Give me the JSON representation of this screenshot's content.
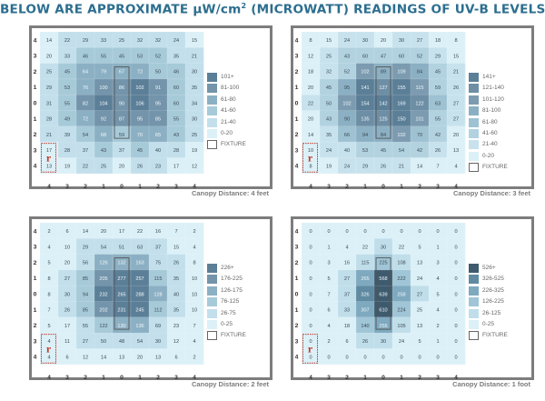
{
  "title_prefix": "BELOW ARE APPROXIMATE µW/cm",
  "title_superscript": "2",
  "title_suffix": " (MICROWATT) READINGS OF UV-B LEVELS",
  "fixture_mark": "r",
  "axis": {
    "x_ticks": [
      "4",
      "3",
      "2",
      "1",
      "0",
      "1",
      "2",
      "3",
      "4"
    ],
    "y_ticks": [
      "4",
      "3",
      "2",
      "1",
      "0",
      "1",
      "2",
      "3",
      "4"
    ]
  },
  "panels": [
    {
      "caption": "Canopy Distance: 4 feet",
      "legend": [
        {
          "label": "101+",
          "color": "#5c7f98"
        },
        {
          "label": "81-100",
          "color": "#7394aa"
        },
        {
          "label": "61-80",
          "color": "#8cb0c3"
        },
        {
          "label": "41-60",
          "color": "#a7cad9"
        },
        {
          "label": "21-40",
          "color": "#c2dfeb"
        },
        {
          "label": "0-20",
          "color": "#dcf0f7"
        },
        {
          "label": "FIXTURE",
          "color": "#ffffff"
        }
      ],
      "grid": [
        [
          14,
          22,
          29,
          33,
          25,
          32,
          32,
          24,
          15
        ],
        [
          20,
          33,
          46,
          55,
          45,
          53,
          52,
          35,
          21
        ],
        [
          25,
          45,
          64,
          79,
          67,
          72,
          50,
          46,
          30
        ],
        [
          29,
          53,
          76,
          100,
          86,
          102,
          91,
          60,
          35
        ],
        [
          31,
          55,
          82,
          104,
          90,
          106,
          95,
          60,
          34
        ],
        [
          28,
          49,
          72,
          92,
          87,
          95,
          85,
          55,
          30
        ],
        [
          21,
          39,
          54,
          68,
          59,
          70,
          65,
          43,
          25
        ],
        [
          17,
          28,
          37,
          43,
          37,
          45,
          40,
          28,
          19
        ],
        [
          13,
          19,
          22,
          25,
          20,
          26,
          23,
          17,
          12
        ]
      ]
    },
    {
      "caption": "Canopy Distance: 3 feet",
      "legend": [
        {
          "label": "141+",
          "color": "#5c7f98"
        },
        {
          "label": "121-140",
          "color": "#6d8ea5"
        },
        {
          "label": "101-120",
          "color": "#7c9bb0"
        },
        {
          "label": "81-100",
          "color": "#8cb0c3"
        },
        {
          "label": "61-80",
          "color": "#9ec2d2"
        },
        {
          "label": "41-60",
          "color": "#b2d2e0"
        },
        {
          "label": "21-40",
          "color": "#c8e2ed"
        },
        {
          "label": "0-20",
          "color": "#dcf0f7"
        },
        {
          "label": "FIXTURE",
          "color": "#ffffff"
        }
      ],
      "grid": [
        [
          8,
          15,
          24,
          30,
          20,
          30,
          27,
          18,
          8
        ],
        [
          12,
          25,
          43,
          60,
          47,
          60,
          52,
          29,
          15
        ],
        [
          18,
          32,
          52,
          102,
          89,
          109,
          84,
          45,
          21
        ],
        [
          20,
          45,
          95,
          141,
          127,
          155,
          115,
          59,
          26
        ],
        [
          22,
          50,
          102,
          154,
          142,
          169,
          122,
          63,
          27
        ],
        [
          20,
          43,
          90,
          135,
          125,
          150,
          101,
          55,
          27
        ],
        [
          14,
          35,
          66,
          94,
          84,
          102,
          70,
          42,
          20
        ],
        [
          10,
          24,
          40,
          53,
          45,
          54,
          42,
          26,
          13
        ],
        [
          8,
          19,
          24,
          29,
          26,
          21,
          14,
          7,
          4
        ]
      ]
    },
    {
      "caption": "Canopy Distance: 2 feet",
      "legend": [
        {
          "label": "226+",
          "color": "#5c7f98"
        },
        {
          "label": "176-225",
          "color": "#7394aa"
        },
        {
          "label": "126-175",
          "color": "#8cb0c3"
        },
        {
          "label": "76-125",
          "color": "#a7cad9"
        },
        {
          "label": "26-75",
          "color": "#c2dfeb"
        },
        {
          "label": "0-25",
          "color": "#dcf0f7"
        },
        {
          "label": "FIXTURE",
          "color": "#ffffff"
        }
      ],
      "grid": [
        [
          2,
          6,
          14,
          20,
          17,
          22,
          16,
          7,
          2
        ],
        [
          4,
          10,
          29,
          54,
          51,
          63,
          37,
          15,
          4
        ],
        [
          5,
          20,
          56,
          126,
          132,
          163,
          75,
          26,
          8
        ],
        [
          8,
          27,
          85,
          205,
          277,
          257,
          115,
          35,
          10
        ],
        [
          8,
          30,
          94,
          232,
          265,
          288,
          128,
          40,
          10
        ],
        [
          7,
          26,
          85,
          202,
          231,
          245,
          112,
          35,
          10
        ],
        [
          5,
          17,
          55,
          122,
          130,
          136,
          69,
          23,
          7
        ],
        [
          4,
          11,
          27,
          50,
          48,
          54,
          30,
          12,
          4
        ],
        [
          4,
          6,
          12,
          14,
          13,
          20,
          13,
          6,
          2
        ]
      ]
    },
    {
      "caption": "Canopy Distance: 1 foot",
      "legend": [
        {
          "label": "526+",
          "color": "#3e5b6e"
        },
        {
          "label": "326-525",
          "color": "#5f8aa1"
        },
        {
          "label": "226-325",
          "color": "#7ea9bf"
        },
        {
          "label": "126-225",
          "color": "#9fc5d6"
        },
        {
          "label": "26-125",
          "color": "#c0deea"
        },
        {
          "label": "0-25",
          "color": "#dcf0f7"
        },
        {
          "label": "FIXTURE",
          "color": "#ffffff"
        }
      ],
      "grid": [
        [
          0,
          0,
          0,
          0,
          0,
          0,
          0,
          0,
          0
        ],
        [
          0,
          1,
          4,
          22,
          30,
          22,
          5,
          1,
          0
        ],
        [
          0,
          3,
          16,
          115,
          225,
          108,
          13,
          3,
          0
        ],
        [
          0,
          5,
          27,
          265,
          568,
          222,
          24,
          4,
          0
        ],
        [
          0,
          7,
          37,
          326,
          639,
          258,
          27,
          5,
          0
        ],
        [
          0,
          6,
          33,
          307,
          610,
          224,
          25,
          4,
          0
        ],
        [
          0,
          4,
          18,
          140,
          255,
          105,
          13,
          2,
          0
        ],
        [
          0,
          2,
          6,
          26,
          30,
          24,
          5,
          1,
          0
        ],
        [
          0,
          0,
          0,
          0,
          0,
          0,
          0,
          0,
          0
        ]
      ]
    }
  ]
}
